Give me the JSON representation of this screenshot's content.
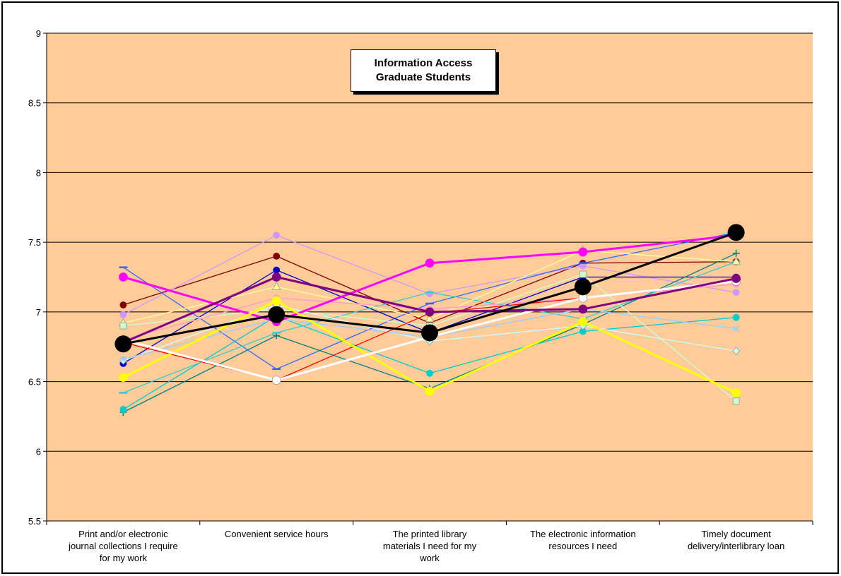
{
  "chart_data": {
    "type": "line",
    "title": [
      "Information Access",
      "Graduate Students"
    ],
    "ylim": [
      5.5,
      9
    ],
    "yticks": [
      "5.5",
      "6",
      "6.5",
      "7",
      "7.5",
      "8",
      "8.5",
      "9"
    ],
    "ytick_values": [
      5.5,
      6,
      6.5,
      7,
      7.5,
      8,
      8.5,
      9
    ],
    "grid": true,
    "plot_background": "#FFCC99",
    "categories": [
      [
        "Print and/or electronic",
        "journal collections I require",
        "for my work"
      ],
      [
        "Convenient service hours"
      ],
      [
        "The printed library",
        "materials I need for my",
        "work"
      ],
      [
        "The electronic information",
        "resources I need"
      ],
      [
        "Timely document",
        "delivery/interlibrary loan"
      ]
    ],
    "series": [
      {
        "color": "#000000",
        "width": 3,
        "marker": "circle-large",
        "values": [
          6.77,
          6.98,
          6.85,
          7.18,
          7.57
        ]
      },
      {
        "color": "#FF00FF",
        "width": 3,
        "marker": "circle",
        "values": [
          7.25,
          6.93,
          7.35,
          7.43,
          7.55
        ]
      },
      {
        "color": "#FFFF00",
        "width": 3,
        "marker": "circle",
        "values": [
          6.53,
          7.08,
          6.43,
          6.93,
          6.42
        ]
      },
      {
        "color": "#FFFFFF",
        "width": 3,
        "marker": "circle",
        "values": [
          6.8,
          6.51,
          6.82,
          7.1,
          7.22
        ]
      },
      {
        "color": "#800080",
        "width": 3,
        "marker": "circle",
        "values": [
          6.78,
          7.25,
          7.0,
          7.02,
          7.24
        ]
      },
      {
        "color": "#800000",
        "width": 1.3,
        "marker": "circle",
        "values": [
          7.05,
          7.4,
          6.92,
          7.35,
          7.36
        ]
      },
      {
        "color": "#CC99FF",
        "width": 1.3,
        "marker": "circle",
        "values": [
          6.98,
          7.55,
          7.13,
          7.33,
          7.14
        ]
      },
      {
        "color": "#3366FF",
        "width": 1.3,
        "marker": "dash",
        "values": [
          7.32,
          6.59,
          7.06,
          7.35,
          7.57
        ]
      },
      {
        "color": "#0000CC",
        "width": 1.3,
        "marker": "circle",
        "values": [
          6.63,
          7.3,
          6.85,
          7.25,
          7.25
        ]
      },
      {
        "color": "#008080",
        "width": 1.3,
        "marker": "plus",
        "values": [
          6.28,
          6.83,
          6.45,
          6.91,
          7.42
        ]
      },
      {
        "color": "#00CCCC",
        "width": 1.3,
        "marker": "circle",
        "values": [
          6.3,
          6.97,
          6.56,
          6.86,
          6.96
        ]
      },
      {
        "color": "#33CCCC",
        "width": 1.3,
        "marker": "dash",
        "values": [
          6.42,
          6.85,
          7.14,
          6.95,
          7.36
        ]
      },
      {
        "color": "#FFFF99",
        "width": 1.3,
        "marker": "triangle",
        "values": [
          6.92,
          7.18,
          6.95,
          7.44,
          7.36
        ]
      },
      {
        "color": "#CCFFCC",
        "width": 1.3,
        "marker": "square",
        "values": [
          6.9,
          7.02,
          6.9,
          7.27,
          6.36
        ]
      },
      {
        "color": "#CCFFFF",
        "width": 1.3,
        "marker": "diamond",
        "values": [
          6.65,
          7.05,
          6.79,
          6.9,
          6.72
        ]
      },
      {
        "color": "#99CCFF",
        "width": 1.3,
        "marker": "cross",
        "values": [
          6.66,
          6.95,
          6.82,
          7.02,
          6.88
        ]
      },
      {
        "color": "#FF99CC",
        "width": 1.3,
        "marker": "circle",
        "values": [
          6.8,
          7.1,
          7.02,
          7.1,
          7.2
        ]
      },
      {
        "color": "#FF0000",
        "width": 1.3,
        "marker": "circle",
        "values": [
          6.78,
          6.51,
          6.99,
          7.1,
          7.22
        ]
      }
    ]
  }
}
